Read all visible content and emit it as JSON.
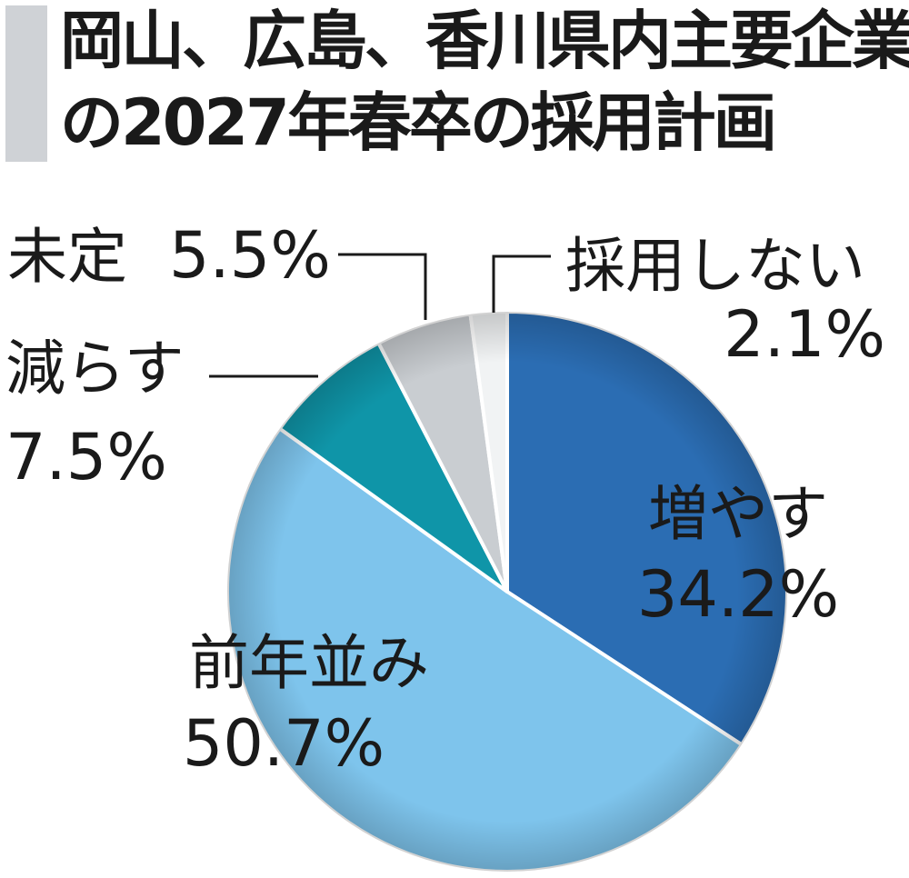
{
  "title_lines": [
    "岡山、広島、香川県内主要企業",
    "の2027年春卒の採用計画"
  ],
  "chart_data": {
    "type": "pie",
    "title": "岡山、広島、香川県内主要企業の2027年春卒の採用計画",
    "unit": "%",
    "slices": [
      {
        "label": "増やす",
        "value": 34.2,
        "value_label": "34.2%",
        "color": "#2b6db3"
      },
      {
        "label": "前年並み",
        "value": 50.7,
        "value_label": "50.7%",
        "color": "#7ec4ec"
      },
      {
        "label": "減らす",
        "value": 7.5,
        "value_label": "7.5%",
        "color": "#0f95a8"
      },
      {
        "label": "未定",
        "value": 5.5,
        "value_label": "5.5%",
        "color": "#c9cdd1"
      },
      {
        "label": "採用しない",
        "value": 2.1,
        "value_label": "2.1%",
        "color": "#f1f3f4"
      }
    ],
    "start": "12 o'clock",
    "direction": "clockwise",
    "legend": "none (labels on and beside slices)"
  }
}
